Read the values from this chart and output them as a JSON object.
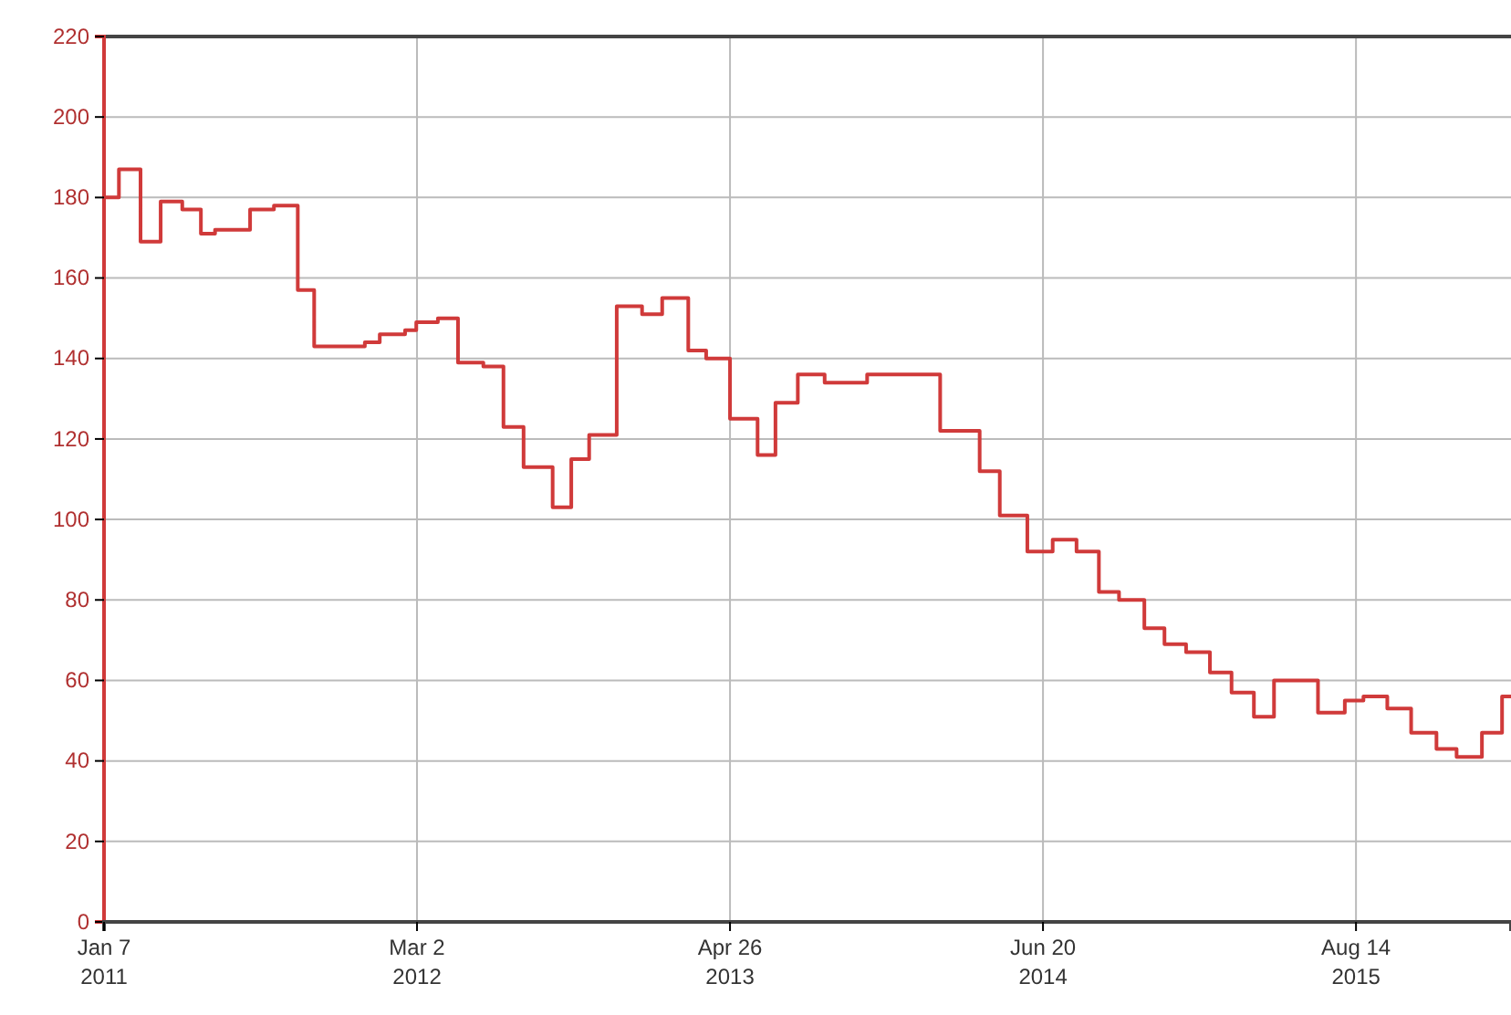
{
  "chart_data": {
    "type": "step",
    "color": "#d03a3a",
    "grid": true,
    "x": [
      "2011-01-07",
      "2011-01-27",
      "2011-02-25",
      "2011-03-24",
      "2011-04-22",
      "2011-05-17",
      "2011-06-05",
      "2011-07-22",
      "2011-08-23",
      "2011-09-24",
      "2011-10-16",
      "2011-12-23",
      "2012-01-12",
      "2012-02-15",
      "2012-03-01",
      "2012-03-30",
      "2012-04-26",
      "2012-05-30",
      "2012-06-26",
      "2012-07-23",
      "2012-08-31",
      "2012-09-25",
      "2012-10-19",
      "2012-11-25",
      "2012-12-29",
      "2013-01-25",
      "2013-03-01",
      "2013-03-25",
      "2013-04-26",
      "2013-06-02",
      "2013-06-26",
      "2013-07-26",
      "2013-08-31",
      "2013-10-27",
      "2014-02-02",
      "2014-03-27",
      "2014-04-23",
      "2014-05-30",
      "2014-07-03",
      "2014-08-04",
      "2014-09-03",
      "2014-09-30",
      "2014-11-03",
      "2014-11-30",
      "2014-12-29",
      "2015-01-30",
      "2015-02-28",
      "2015-03-30",
      "2015-04-26",
      "2015-06-24",
      "2015-07-30",
      "2015-08-24",
      "2015-09-25",
      "2015-10-27",
      "2015-11-30",
      "2015-12-27",
      "2016-01-30",
      "2016-02-26",
      "2016-03-09"
    ],
    "values": [
      180,
      187,
      169,
      179,
      177,
      171,
      172,
      177,
      178,
      157,
      143,
      144,
      146,
      147,
      149,
      150,
      139,
      138,
      123,
      113,
      103,
      115,
      121,
      153,
      151,
      155,
      142,
      140,
      125,
      116,
      129,
      136,
      134,
      136,
      122,
      112,
      101,
      92,
      95,
      92,
      82,
      80,
      73,
      69,
      67,
      62,
      57,
      51,
      60,
      52,
      55,
      56,
      53,
      47,
      43,
      41,
      47,
      56,
      56
    ],
    "xlim": [
      "2011-01-07",
      "2016-03-09"
    ],
    "xticks": [
      {
        "value": "2011-01-07",
        "label": "Jan 7\n2011"
      },
      {
        "value": "2012-03-02",
        "label": "Mar 2\n2012"
      },
      {
        "value": "2013-04-26",
        "label": "Apr 26\n2013"
      },
      {
        "value": "2014-06-20",
        "label": "Jun 20\n2014"
      },
      {
        "value": "2015-08-14",
        "label": "Aug 14\n2015"
      }
    ],
    "ylim": [
      0,
      220
    ],
    "yticks": [
      0,
      20,
      40,
      60,
      80,
      100,
      120,
      140,
      160,
      180,
      200,
      220
    ]
  }
}
